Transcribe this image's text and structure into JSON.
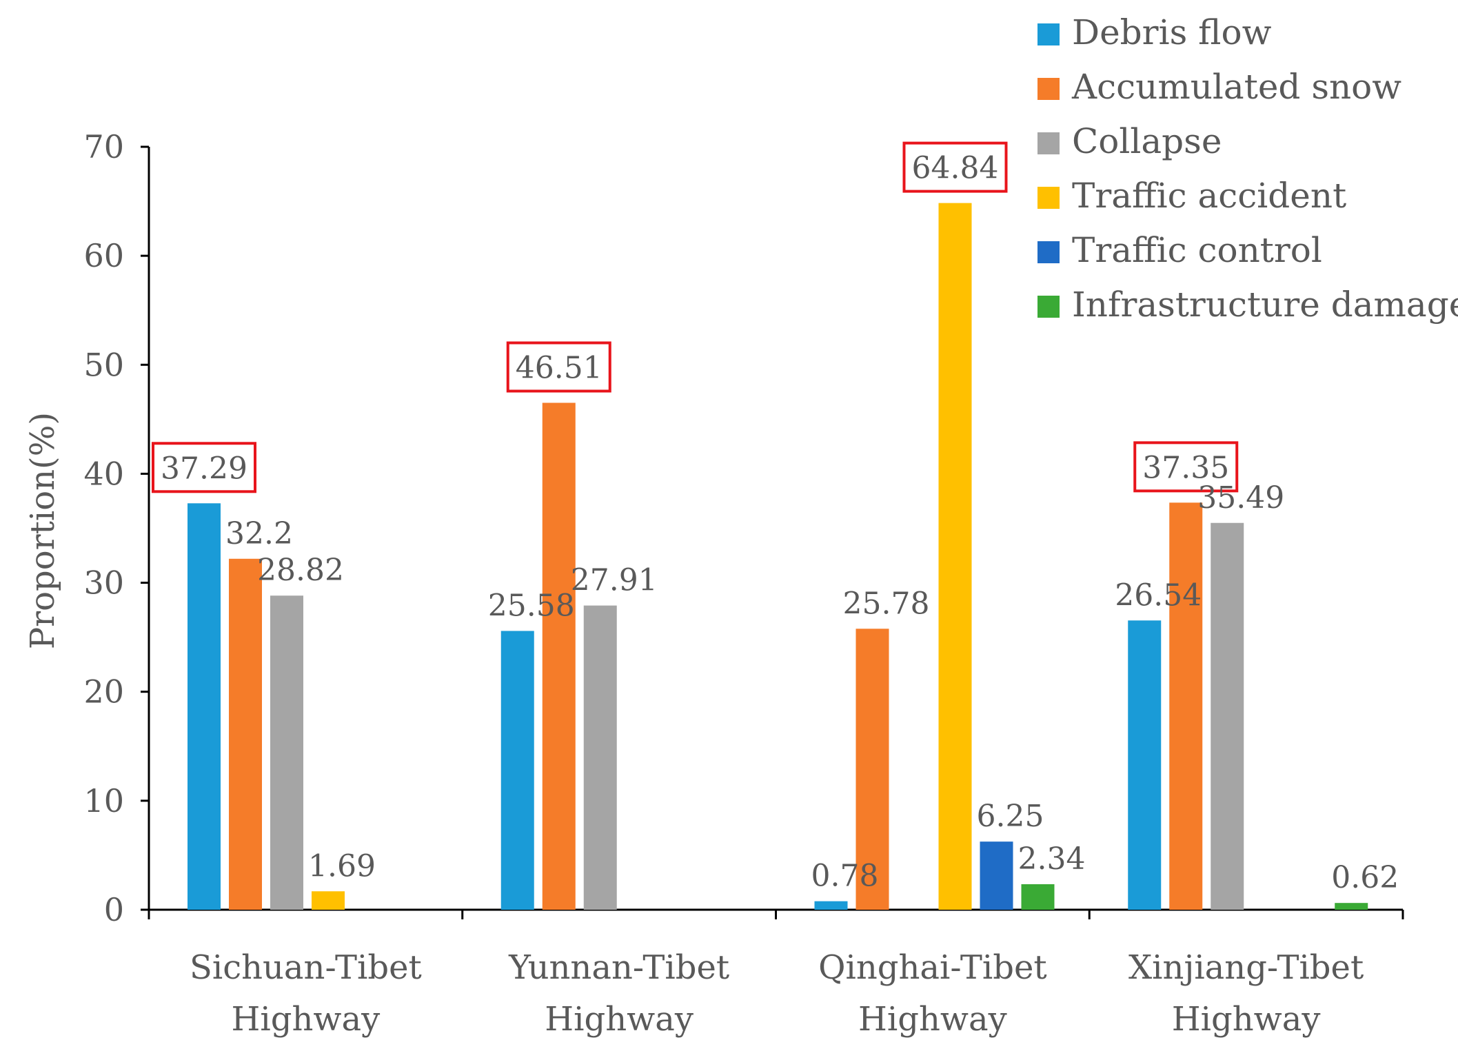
{
  "chart_data": {
    "type": "bar",
    "title": "",
    "xlabel": "",
    "ylabel": "Proportion(%)",
    "ylim": [
      0,
      70
    ],
    "yticks": [
      0,
      10,
      20,
      30,
      40,
      50,
      60,
      70
    ],
    "grid": false,
    "legend_position": "top-right",
    "categories": [
      [
        "Sichuan-Tibet",
        "Highway"
      ],
      [
        "Yunnan-Tibet",
        "Highway"
      ],
      [
        "Qinghai-Tibet",
        "Highway"
      ],
      [
        "Xinjiang-Tibet",
        "Highway"
      ]
    ],
    "series": [
      {
        "name": "Debris flow",
        "color": "#1a9bd7",
        "values": [
          37.29,
          25.58,
          0.78,
          26.54
        ],
        "labels": [
          "37.29",
          "25.58",
          "0.78",
          "26.54"
        ]
      },
      {
        "name": "Accumulated snow",
        "color": "#f57c29",
        "values": [
          32.2,
          46.51,
          25.78,
          37.35
        ],
        "labels": [
          "32.2",
          "46.51",
          "25.78",
          "37.35"
        ]
      },
      {
        "name": "Collapse",
        "color": "#a5a5a5",
        "values": [
          28.82,
          27.91,
          null,
          35.49
        ],
        "labels": [
          "28.82",
          "27.91",
          null,
          "35.49"
        ]
      },
      {
        "name": "Traffic accident",
        "color": "#ffc000",
        "values": [
          1.69,
          null,
          64.84,
          null
        ],
        "labels": [
          "1.69",
          null,
          "64.84",
          null
        ]
      },
      {
        "name": "Traffic control",
        "color": "#1f6cc6",
        "values": [
          null,
          null,
          6.25,
          null
        ],
        "labels": [
          null,
          null,
          "6.25",
          null
        ]
      },
      {
        "name": "Infrastructure damage",
        "color": "#3aaa35",
        "values": [
          null,
          null,
          2.34,
          0.62
        ],
        "labels": [
          null,
          null,
          "2.34",
          "0.62"
        ]
      }
    ],
    "highlighted": [
      {
        "category": 0,
        "series": 0
      },
      {
        "category": 1,
        "series": 1
      },
      {
        "category": 2,
        "series": 3
      },
      {
        "category": 3,
        "series": 1
      }
    ],
    "highlight_color": "#e8141b"
  }
}
